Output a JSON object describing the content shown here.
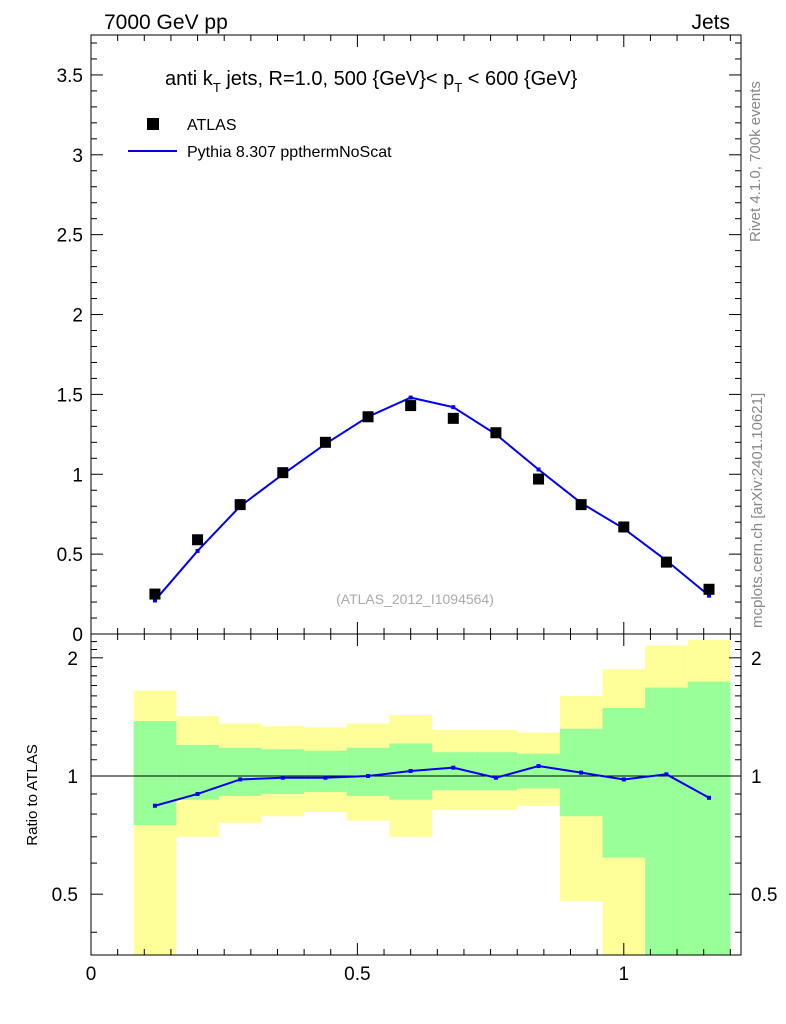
{
  "header": {
    "left": "7000 GeV pp",
    "right": "Jets"
  },
  "side_labels": {
    "rivet": "Rivet 4.1.0,  700k events",
    "mcplots": "mcplots.cern.ch [arXiv:2401.10621]"
  },
  "chart_data": [
    {
      "type": "scatter",
      "title_parts": {
        "t1": "anti k",
        "t1_sub": "T",
        "t2": " jets, R=1.0,  500 {GeV}< p",
        "t2_sub": "T",
        "t3": " < 600 {GeV}"
      },
      "watermark": "(ATLAS_2012_I1094564)",
      "xlim": [
        0,
        1.22
      ],
      "ylim": [
        0,
        3.75
      ],
      "yticks": [
        "0",
        "0.5",
        "1",
        "1.5",
        "2",
        "2.5",
        "3",
        "3.5"
      ],
      "ytick_values": [
        0,
        0.5,
        1,
        1.5,
        2,
        2.5,
        3,
        3.5
      ],
      "legend": {
        "data_label": "ATLAS",
        "mc_label": "Pythia 8.307 ppthermNoScat",
        "position": "top-left"
      },
      "series": [
        {
          "name": "ATLAS",
          "kind": "markers",
          "color": "#000000",
          "x": [
            0.12,
            0.2,
            0.28,
            0.36,
            0.44,
            0.52,
            0.6,
            0.68,
            0.76,
            0.84,
            0.92,
            1.0,
            1.08,
            1.16
          ],
          "y": [
            0.25,
            0.59,
            0.81,
            1.01,
            1.2,
            1.36,
            1.43,
            1.35,
            1.26,
            0.97,
            0.81,
            0.67,
            0.45,
            0.28
          ]
        },
        {
          "name": "Pythia 8.307 ppthermNoScat",
          "kind": "line",
          "color": "#0000ee",
          "x": [
            0.12,
            0.2,
            0.28,
            0.36,
            0.44,
            0.52,
            0.6,
            0.68,
            0.76,
            0.84,
            0.92,
            1.0,
            1.08,
            1.16
          ],
          "y": [
            0.21,
            0.52,
            0.8,
            1.0,
            1.19,
            1.36,
            1.48,
            1.42,
            1.25,
            1.03,
            0.82,
            0.66,
            0.46,
            0.24
          ]
        }
      ]
    },
    {
      "type": "line",
      "ylabel": "Ratio to ATLAS",
      "xlim": [
        0,
        1.22
      ],
      "ylim": [
        0.35,
        2.3
      ],
      "log_y": true,
      "xticks": [
        "0",
        "0.5",
        "1"
      ],
      "xtick_values": [
        0,
        0.5,
        1
      ],
      "yticks": [
        "0.5",
        "1",
        "2"
      ],
      "ytick_values": [
        0.5,
        1,
        2
      ],
      "reference_line": 1,
      "bands": {
        "edges": [
          0.08,
          0.16,
          0.24,
          0.32,
          0.4,
          0.48,
          0.56,
          0.64,
          0.72,
          0.8,
          0.88,
          0.96,
          1.04,
          1.12,
          1.2
        ],
        "yellow_lo": [
          0.35,
          0.7,
          0.76,
          0.79,
          0.81,
          0.77,
          0.7,
          0.82,
          0.82,
          0.84,
          0.48,
          0.35,
          0.35,
          0.35
        ],
        "yellow_hi": [
          1.65,
          1.42,
          1.36,
          1.34,
          1.33,
          1.36,
          1.43,
          1.31,
          1.31,
          1.29,
          1.6,
          1.87,
          2.15,
          2.22
        ],
        "green_lo": [
          0.75,
          0.87,
          0.89,
          0.9,
          0.91,
          0.89,
          0.87,
          0.92,
          0.92,
          0.93,
          0.79,
          0.62,
          0.35,
          0.35
        ],
        "green_hi": [
          1.38,
          1.2,
          1.18,
          1.17,
          1.16,
          1.18,
          1.21,
          1.15,
          1.15,
          1.14,
          1.32,
          1.49,
          1.68,
          1.74
        ],
        "yellow_color": "#ffff99",
        "green_color": "#99ff99"
      },
      "series": [
        {
          "name": "Pythia 8.307 ppthermNoScat / ATLAS",
          "color": "#0000ee",
          "x": [
            0.12,
            0.2,
            0.28,
            0.36,
            0.44,
            0.52,
            0.6,
            0.68,
            0.76,
            0.84,
            0.92,
            1.0,
            1.08,
            1.16
          ],
          "y": [
            0.84,
            0.9,
            0.98,
            0.99,
            0.99,
            1.0,
            1.03,
            1.05,
            0.99,
            1.06,
            1.02,
            0.98,
            1.01,
            0.88
          ]
        }
      ]
    }
  ]
}
